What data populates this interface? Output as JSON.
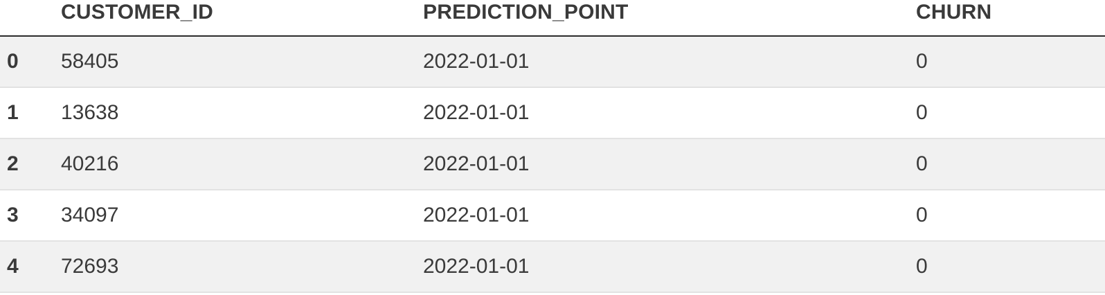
{
  "table": {
    "columns": [
      "",
      "CUSTOMER_ID",
      "PREDICTION_POINT",
      "CHURN"
    ],
    "rows": [
      {
        "index": "0",
        "customer_id": "58405",
        "prediction_point": "2022-01-01",
        "churn": "0"
      },
      {
        "index": "1",
        "customer_id": "13638",
        "prediction_point": "2022-01-01",
        "churn": "0"
      },
      {
        "index": "2",
        "customer_id": "40216",
        "prediction_point": "2022-01-01",
        "churn": "0"
      },
      {
        "index": "3",
        "customer_id": "34097",
        "prediction_point": "2022-01-01",
        "churn": "0"
      },
      {
        "index": "4",
        "customer_id": "72693",
        "prediction_point": "2022-01-01",
        "churn": "0"
      }
    ]
  },
  "colors": {
    "text": "#3a3a3a",
    "stripe": "#f1f1f1",
    "header_rule": "#2b2b2b",
    "row_rule": "#e2e2e2"
  }
}
